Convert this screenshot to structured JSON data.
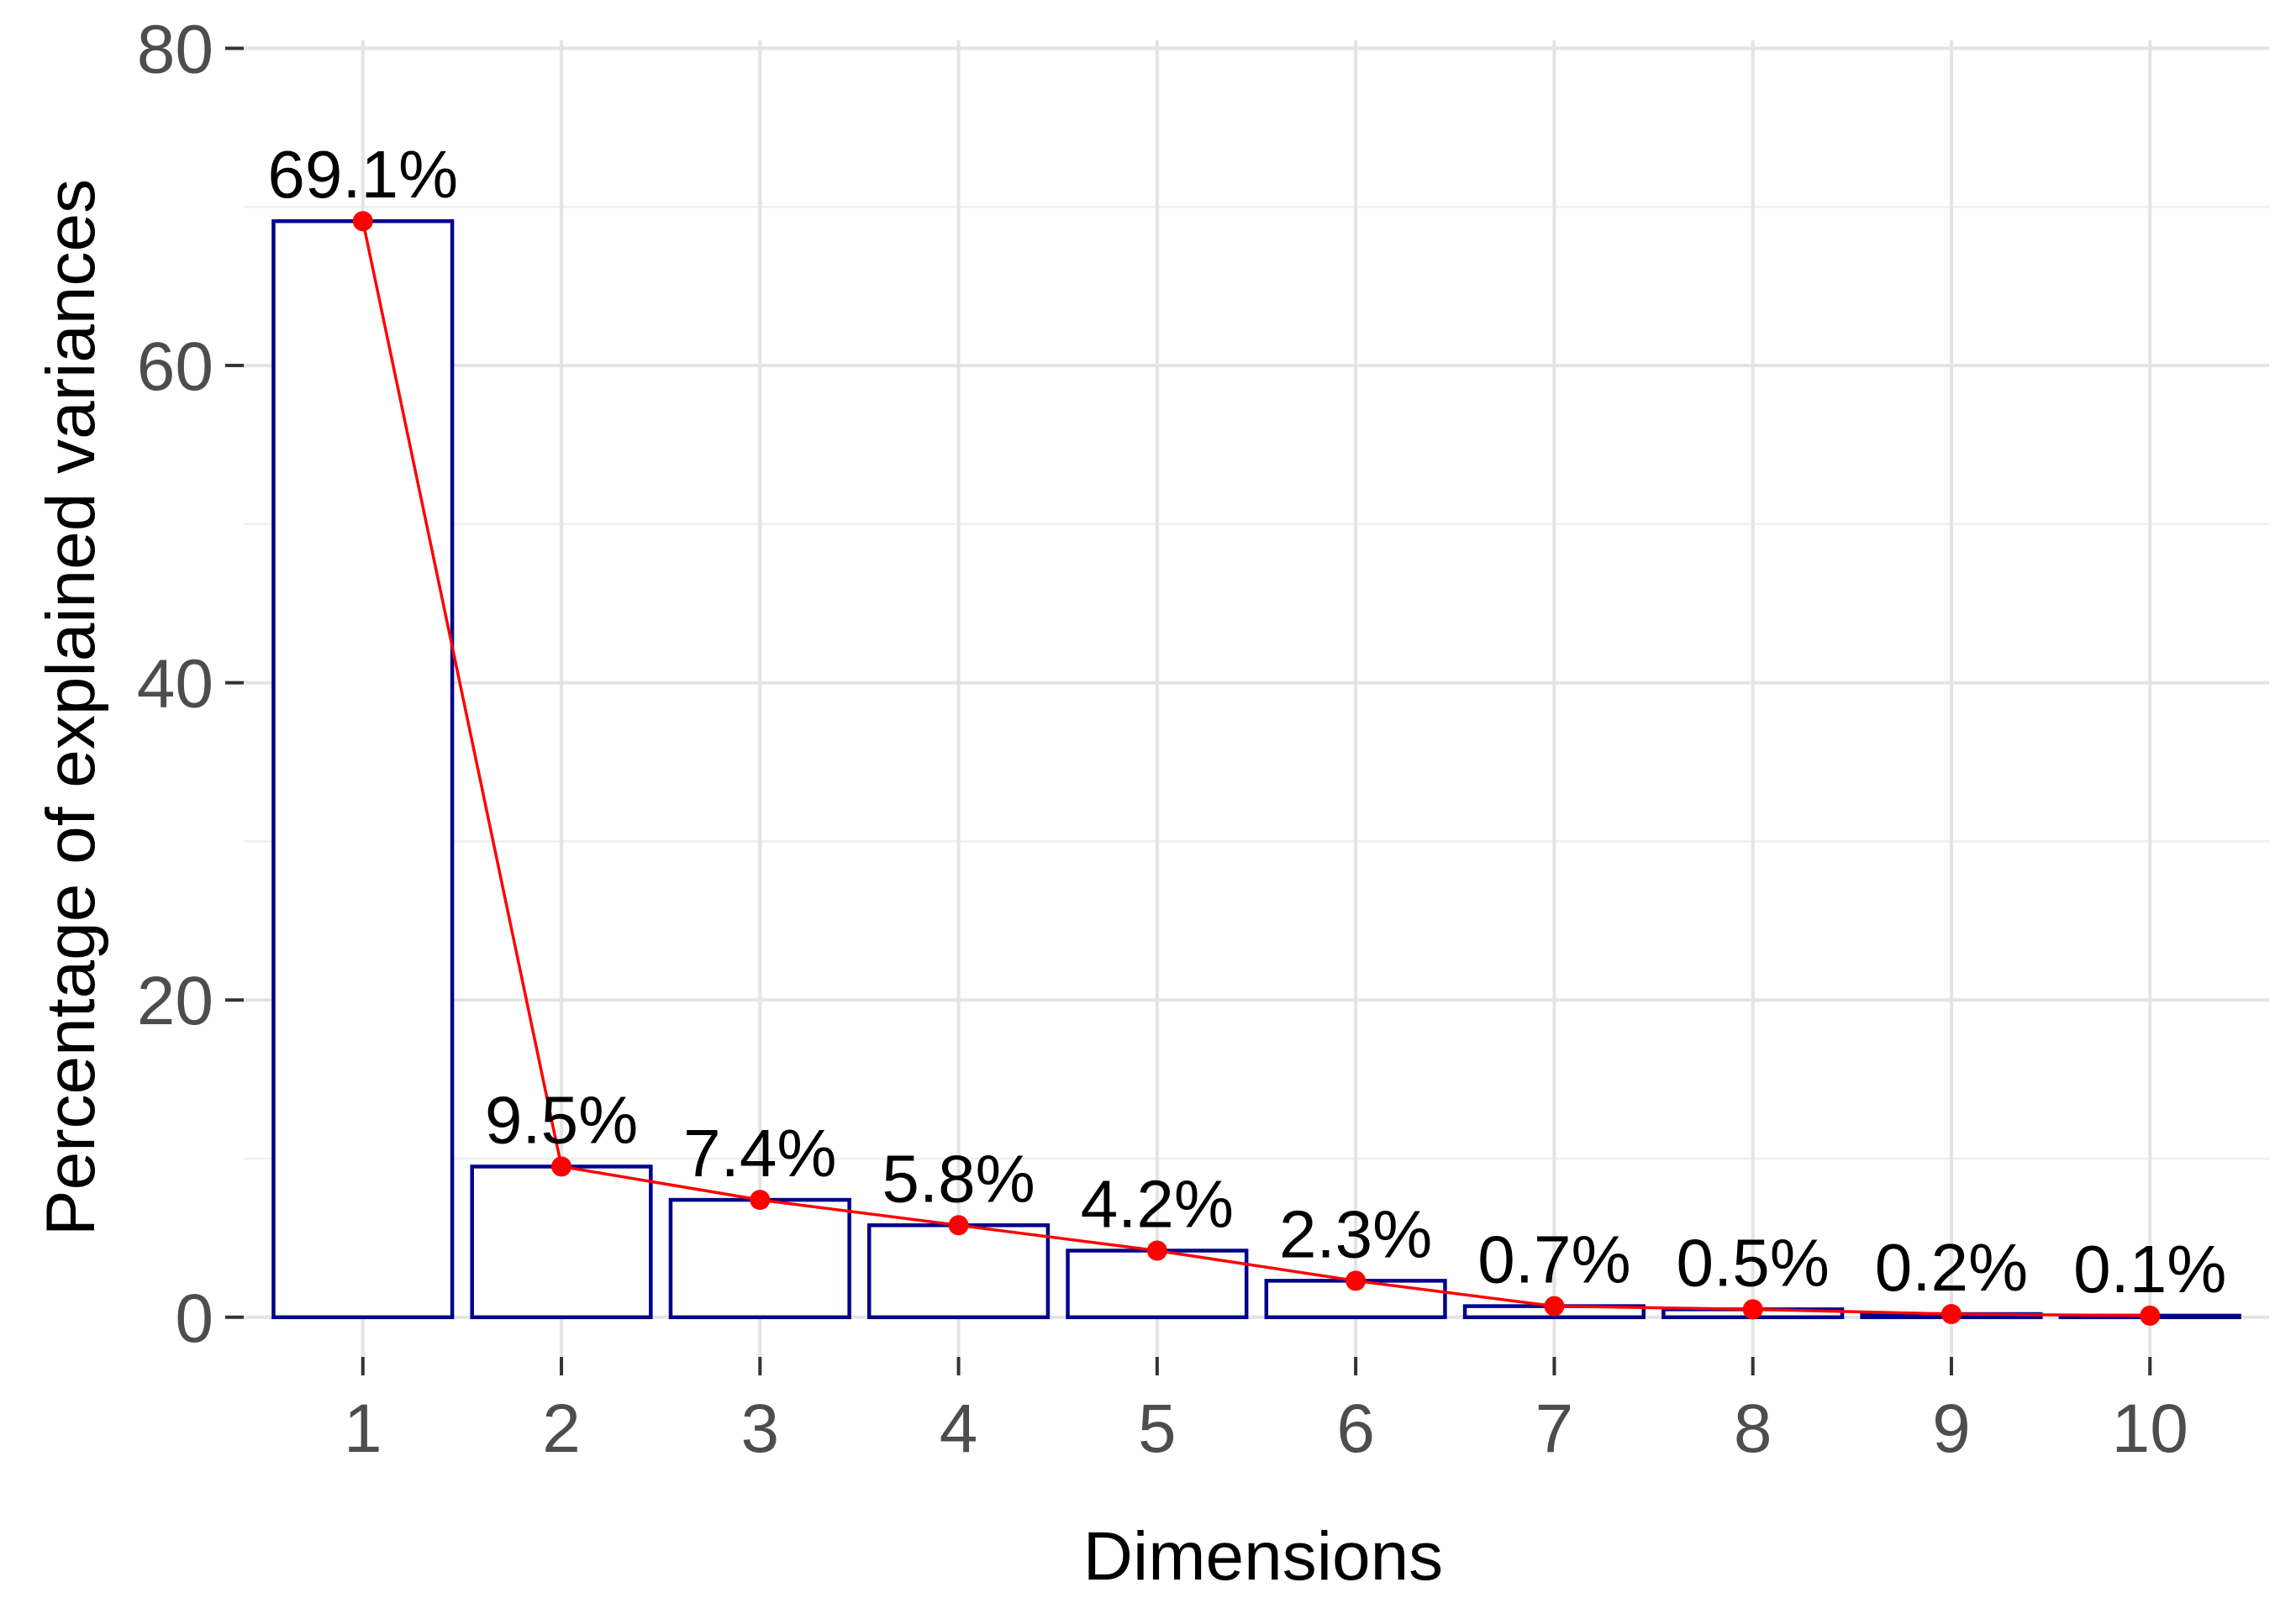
{
  "chart_data": {
    "type": "bar",
    "categories": [
      "1",
      "2",
      "3",
      "4",
      "5",
      "6",
      "7",
      "8",
      "9",
      "10"
    ],
    "values": [
      69.1,
      9.5,
      7.4,
      5.8,
      4.2,
      2.3,
      0.7,
      0.5,
      0.2,
      0.1
    ],
    "data_labels": [
      "69.1%",
      "9.5%",
      "7.4%",
      "5.8%",
      "4.2%",
      "2.3%",
      "0.7%",
      "0.5%",
      "0.2%",
      "0.1%"
    ],
    "overlay_line": {
      "type": "line",
      "markers": true,
      "values": [
        69.1,
        9.5,
        7.4,
        5.8,
        4.2,
        2.3,
        0.7,
        0.5,
        0.2,
        0.1
      ]
    },
    "title": "",
    "xlabel": "Dimensions",
    "ylabel": "Percentage of explained variances",
    "ylim": [
      -2.5,
      80.5
    ],
    "yticks": [
      0,
      20,
      40,
      60,
      80
    ],
    "grid": true,
    "legend": "none",
    "colors": {
      "bar_outline": "#00008b",
      "bar_fill": "#ffffff",
      "line": "#ff0000",
      "points": "#ff0000",
      "grid": "#e4e4e4",
      "tick_label": "#4d4d4d"
    }
  }
}
